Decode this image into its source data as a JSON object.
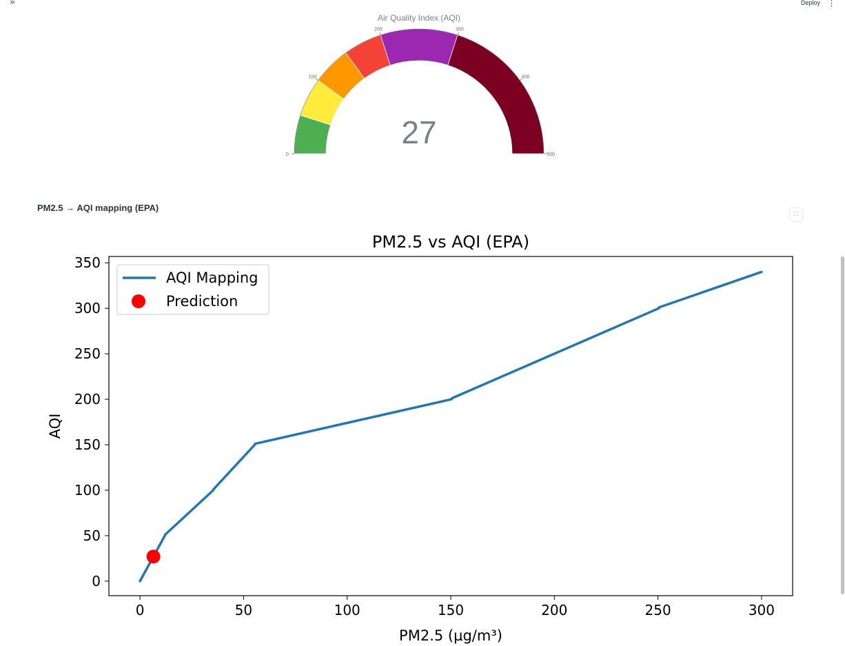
{
  "header": {
    "collapse_icon_glyph": "»",
    "deploy_label": "Deploy",
    "menu_glyph": "⋮"
  },
  "gauge": {
    "title": "Air Quality Index (AQI)",
    "value": "27",
    "range": [
      0,
      500
    ],
    "ticks": [
      "0",
      "100",
      "200",
      "300",
      "400",
      "500"
    ],
    "bands": [
      {
        "from": 0,
        "to": 50,
        "color": "#4caf50"
      },
      {
        "from": 50,
        "to": 100,
        "color": "#ffeb3b"
      },
      {
        "from": 100,
        "to": 150,
        "color": "#ff9800"
      },
      {
        "from": 150,
        "to": 200,
        "color": "#f44336"
      },
      {
        "from": 200,
        "to": 300,
        "color": "#9c27b0"
      },
      {
        "from": 300,
        "to": 500,
        "color": "#7b0022"
      }
    ]
  },
  "section": {
    "subheader": "PM2.5 → AQI mapping (EPA)",
    "fullscreen_glyph": "⛶"
  },
  "chart_data": {
    "type": "line",
    "title": "PM2.5 vs AQI (EPA)",
    "xlabel": "PM2.5 (µg/m³)",
    "ylabel": "AQI",
    "xlim": [
      -15,
      315
    ],
    "ylim": [
      -16,
      357
    ],
    "xticks": [
      "0",
      "50",
      "100",
      "150",
      "200",
      "250",
      "300"
    ],
    "yticks": [
      "0",
      "50",
      "100",
      "150",
      "200",
      "250",
      "300",
      "350"
    ],
    "grid": false,
    "legend_position": "top-left",
    "series": [
      {
        "name": "AQI Mapping",
        "color": "#1f77b4",
        "x": [
          0,
          12,
          12.1,
          35.4,
          35.5,
          55.4,
          55.5,
          150.4,
          150.5,
          250.4,
          250.5,
          300
        ],
        "y": [
          0,
          50,
          51,
          100,
          101,
          150,
          151,
          200,
          201,
          300,
          301,
          340
        ]
      }
    ],
    "points": [
      {
        "name": "Prediction",
        "color": "#ff0000",
        "x": 6.5,
        "y": 27
      }
    ]
  }
}
